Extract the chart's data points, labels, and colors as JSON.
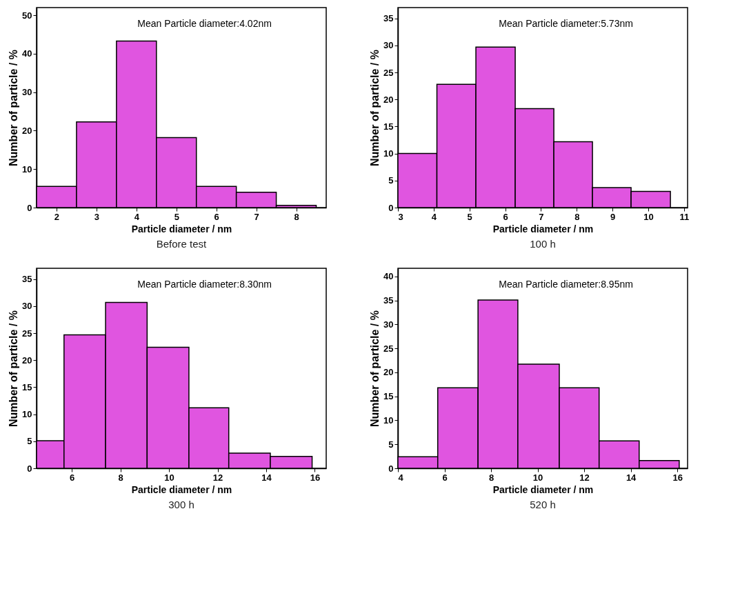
{
  "chart_data": [
    {
      "type": "histogram",
      "title": "Before test",
      "xlabel": "Particle diameter / nm",
      "ylabel": "Number of particle / %",
      "annotations": [
        "Mean Particle diameter:4.02nm"
      ],
      "color": "#e055e0",
      "bins": [
        1.5,
        2.5,
        3.5,
        4.5,
        5.5,
        6.5,
        7.5,
        8.5
      ],
      "values": [
        5.5,
        22.3,
        43.3,
        18.2,
        5.5,
        4.0,
        0.6
      ],
      "xlim": [
        1.5,
        8.75
      ],
      "xticks": [
        2,
        3,
        4,
        5,
        6,
        7,
        8
      ],
      "ylim": [
        0,
        52
      ],
      "yticks": [
        0,
        10,
        20,
        30,
        40,
        50
      ]
    },
    {
      "type": "histogram",
      "title": "100 h",
      "xlabel": "Particle diameter / nm",
      "ylabel": "Number of particle / %",
      "annotations": [
        "Mean Particle diameter:5.73nm"
      ],
      "color": "#e055e0",
      "bins": [
        3.0,
        4.09,
        5.18,
        6.28,
        7.36,
        8.44,
        9.52,
        10.62
      ],
      "values": [
        10.0,
        22.8,
        29.7,
        18.3,
        12.2,
        3.7,
        3.0
      ],
      "xlim": [
        3,
        11.1
      ],
      "xticks": [
        3,
        4,
        5,
        6,
        7,
        8,
        9,
        10,
        11
      ],
      "ylim": [
        0,
        37
      ],
      "yticks": [
        0,
        5,
        10,
        15,
        20,
        25,
        30,
        35
      ]
    },
    {
      "type": "histogram",
      "title": "300 h",
      "xlabel": "Particle diameter / nm",
      "ylabel": "Number of particle / %",
      "annotations": [
        "Mean Particle diameter:8.30nm"
      ],
      "color": "#e055e0",
      "bins": [
        4.55,
        5.68,
        7.39,
        9.1,
        10.82,
        12.46,
        14.17,
        15.89
      ],
      "values": [
        5.1,
        24.7,
        30.7,
        22.4,
        11.2,
        2.8,
        2.2
      ],
      "xlim": [
        4.55,
        16.47
      ],
      "xticks": [
        6,
        8,
        10,
        12,
        14,
        16
      ],
      "ylim": [
        0,
        37
      ],
      "yticks": [
        0,
        5,
        10,
        15,
        20,
        25,
        30,
        35
      ]
    },
    {
      "type": "histogram",
      "title": "520 h",
      "xlabel": "Particle diameter / nm",
      "ylabel": "Number of particle / %",
      "annotations": [
        "Mean Particle diameter:8.95nm"
      ],
      "color": "#e055e0",
      "bins": [
        4.0,
        5.71,
        7.44,
        9.15,
        10.93,
        12.64,
        14.36,
        16.08
      ],
      "values": [
        2.4,
        16.8,
        35.1,
        21.7,
        16.8,
        5.7,
        1.6
      ],
      "xlim": [
        4,
        16.44
      ],
      "xticks": [
        4,
        6,
        8,
        10,
        12,
        14,
        16
      ],
      "ylim": [
        0,
        41.7
      ],
      "yticks": [
        0,
        5,
        10,
        15,
        20,
        25,
        30,
        35,
        40
      ]
    }
  ]
}
